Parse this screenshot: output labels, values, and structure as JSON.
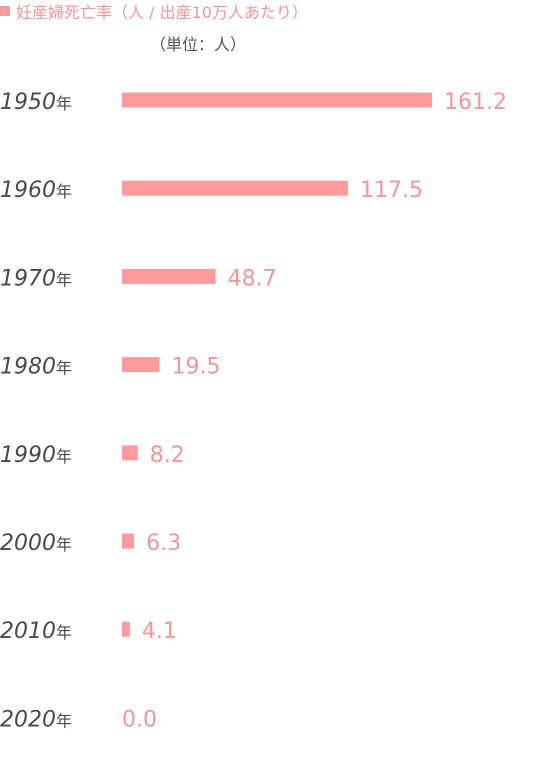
{
  "colors": {
    "bar": "#ff9a9e",
    "label": "#f0979b",
    "text": "#4a4a4a"
  },
  "chart_data": {
    "type": "bar",
    "orientation": "horizontal",
    "series": [
      {
        "name": "妊産婦死亡率（人 / 出産10万人あたり）",
        "values": [
          161.2,
          117.5,
          48.7,
          19.5,
          8.2,
          6.3,
          4.1,
          0.0
        ],
        "value_labels": [
          "161.2",
          "117.5",
          "48.7",
          "19.5",
          "8.2",
          "6.3",
          "4.1",
          "0.0"
        ]
      }
    ],
    "categories": [
      "1950",
      "1960",
      "1970",
      "1980",
      "1990",
      "2000",
      "2010",
      "2020"
    ],
    "category_suffix": "年",
    "unit_label": "（単位：人）",
    "xlim": [
      0,
      161.2
    ],
    "grid": false,
    "legend": "top-left"
  }
}
